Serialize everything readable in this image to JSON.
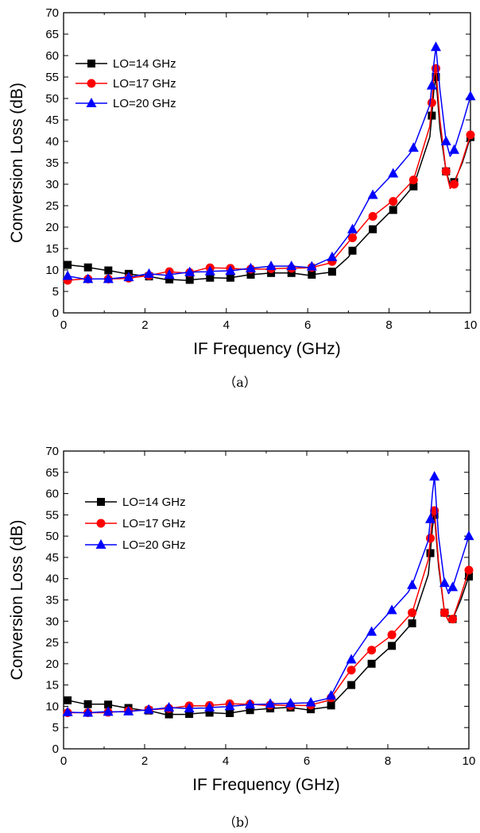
{
  "captions": {
    "a": "（a）",
    "b": "（b）"
  },
  "chart_data": [
    {
      "type": "line",
      "panel": "a",
      "xlabel": "IF Frequency (GHz)",
      "ylabel": "Conversion Loss (dB)",
      "xlim": [
        0,
        10
      ],
      "ylim": [
        0,
        70
      ],
      "xticks": [
        0,
        2,
        4,
        6,
        8,
        10
      ],
      "yticks": [
        0,
        5,
        10,
        15,
        20,
        25,
        30,
        35,
        40,
        45,
        50,
        55,
        60,
        65,
        70
      ],
      "grid": false,
      "legend_position": "top-left",
      "series": [
        {
          "name": "LO=14 GHz",
          "color": "#000000",
          "marker": "square",
          "x": [
            0.1,
            0.5,
            0.6,
            1.0,
            1.1,
            1.5,
            1.6,
            2.0,
            2.1,
            2.5,
            2.6,
            3.0,
            3.1,
            3.5,
            3.6,
            4.0,
            4.1,
            4.5,
            4.6,
            5.0,
            5.1,
            5.5,
            5.6,
            6.0,
            6.1,
            6.5,
            6.6,
            7.0,
            7.1,
            7.5,
            7.6,
            8.0,
            8.1,
            8.5,
            8.6,
            9.0,
            9.05,
            9.1,
            9.15,
            9.25,
            9.4,
            9.5,
            9.6,
            9.8,
            10.0
          ],
          "y": [
            11.2,
            10.8,
            10.6,
            10.0,
            9.9,
            9.2,
            9.1,
            8.6,
            8.5,
            7.8,
            7.8,
            7.6,
            7.7,
            8.0,
            8.2,
            8.1,
            8.2,
            8.8,
            8.9,
            9.2,
            9.3,
            9.3,
            9.3,
            8.8,
            8.9,
            9.4,
            9.6,
            13.0,
            14.5,
            18.6,
            19.5,
            23.3,
            24.0,
            28.5,
            29.5,
            41.0,
            46.0,
            52.0,
            55.0,
            43.0,
            33.0,
            30.0,
            30.5,
            35.0,
            41.0
          ]
        },
        {
          "name": "LO=17 GHz",
          "color": "#ff0000",
          "marker": "circle",
          "x": [
            0.1,
            0.5,
            0.6,
            1.0,
            1.1,
            1.5,
            1.6,
            2.0,
            2.1,
            2.5,
            2.6,
            3.0,
            3.1,
            3.5,
            3.6,
            4.0,
            4.1,
            4.5,
            4.6,
            5.0,
            5.1,
            5.5,
            5.6,
            6.0,
            6.1,
            6.5,
            6.6,
            7.0,
            7.1,
            7.5,
            7.6,
            8.0,
            8.1,
            8.5,
            8.6,
            9.0,
            9.05,
            9.1,
            9.15,
            9.25,
            9.4,
            9.5,
            9.6,
            9.8,
            10.0
          ],
          "y": [
            7.6,
            7.9,
            7.9,
            7.9,
            7.9,
            8.0,
            8.1,
            8.6,
            8.7,
            9.5,
            9.6,
            9.3,
            9.4,
            10.4,
            10.5,
            10.4,
            10.4,
            10.1,
            10.2,
            10.2,
            10.3,
            10.4,
            10.4,
            10.5,
            10.6,
            11.5,
            12.0,
            16.5,
            17.5,
            22.0,
            22.5,
            25.5,
            26.0,
            30.0,
            31.0,
            43.5,
            49.0,
            55.0,
            57.0,
            45.0,
            33.0,
            29.0,
            30.0,
            35.5,
            41.5
          ]
        },
        {
          "name": "LO=20 GHz",
          "color": "#0000ff",
          "marker": "triangle",
          "x": [
            0.1,
            0.5,
            0.6,
            1.0,
            1.1,
            1.5,
            1.6,
            2.0,
            2.1,
            2.5,
            2.6,
            3.0,
            3.1,
            3.5,
            3.6,
            4.0,
            4.1,
            4.5,
            4.6,
            5.0,
            5.1,
            5.5,
            5.6,
            6.0,
            6.1,
            6.5,
            6.6,
            7.0,
            7.1,
            7.5,
            7.6,
            8.0,
            8.1,
            8.5,
            8.6,
            9.0,
            9.05,
            9.1,
            9.15,
            9.25,
            9.4,
            9.5,
            9.6,
            9.8,
            10.0
          ],
          "y": [
            8.6,
            7.9,
            7.9,
            7.9,
            7.9,
            8.3,
            8.3,
            9.0,
            9.1,
            8.8,
            8.9,
            9.4,
            9.5,
            9.6,
            9.7,
            9.8,
            9.8,
            10.3,
            10.4,
            10.8,
            10.9,
            10.9,
            10.9,
            10.6,
            10.8,
            12.5,
            13.0,
            18.0,
            19.5,
            26.5,
            27.5,
            31.5,
            32.5,
            37.0,
            38.5,
            48.5,
            53.0,
            58.0,
            62.0,
            52.0,
            40.0,
            36.5,
            38.0,
            44.0,
            50.5
          ]
        }
      ]
    },
    {
      "type": "line",
      "panel": "b",
      "xlabel": "IF Frequency (GHz)",
      "ylabel": "Conversion Loss (dB)",
      "xlim": [
        0,
        10
      ],
      "ylim": [
        0,
        70
      ],
      "xticks": [
        0,
        2,
        4,
        6,
        8,
        10
      ],
      "yticks": [
        0,
        5,
        10,
        15,
        20,
        25,
        30,
        35,
        40,
        45,
        50,
        55,
        60,
        65,
        70
      ],
      "grid": false,
      "legend_position": "top-left",
      "series": [
        {
          "name": "LO=14 GHz",
          "color": "#000000",
          "marker": "square",
          "x": [
            0.1,
            0.5,
            0.6,
            1.0,
            1.1,
            1.5,
            1.6,
            2.0,
            2.1,
            2.5,
            2.6,
            3.0,
            3.1,
            3.5,
            3.6,
            4.0,
            4.1,
            4.5,
            4.6,
            5.0,
            5.1,
            5.5,
            5.6,
            6.0,
            6.1,
            6.5,
            6.6,
            7.0,
            7.1,
            7.5,
            7.6,
            8.0,
            8.1,
            8.5,
            8.6,
            9.0,
            9.05,
            9.1,
            9.15,
            9.25,
            9.4,
            9.5,
            9.6,
            9.8,
            10.0
          ],
          "y": [
            11.4,
            10.6,
            10.5,
            10.5,
            10.4,
            9.7,
            9.6,
            9.0,
            9.0,
            8.1,
            8.1,
            8.1,
            8.2,
            8.5,
            8.5,
            8.3,
            8.4,
            9.0,
            9.1,
            9.4,
            9.5,
            9.7,
            9.7,
            9.2,
            9.3,
            9.8,
            10.2,
            14.2,
            15.0,
            19.2,
            20.0,
            23.4,
            24.2,
            28.5,
            29.5,
            41.0,
            46.0,
            52.0,
            55.0,
            43.0,
            32.0,
            30.0,
            30.5,
            35.0,
            40.5
          ]
        },
        {
          "name": "LO=17 GHz",
          "color": "#ff0000",
          "marker": "circle",
          "x": [
            0.1,
            0.5,
            0.6,
            1.0,
            1.1,
            1.5,
            1.6,
            2.0,
            2.1,
            2.5,
            2.6,
            3.0,
            3.1,
            3.5,
            3.6,
            4.0,
            4.1,
            4.5,
            4.6,
            5.0,
            5.1,
            5.5,
            5.6,
            6.0,
            6.1,
            6.5,
            6.6,
            7.0,
            7.1,
            7.5,
            7.6,
            8.0,
            8.1,
            8.5,
            8.6,
            9.0,
            9.05,
            9.1,
            9.15,
            9.25,
            9.4,
            9.5,
            9.6,
            9.8,
            10.0
          ],
          "y": [
            8.5,
            8.5,
            8.5,
            8.5,
            8.6,
            8.8,
            8.9,
            9.1,
            9.2,
            9.4,
            9.5,
            10.0,
            10.1,
            10.1,
            10.2,
            10.5,
            10.6,
            10.5,
            10.5,
            10.2,
            10.3,
            10.2,
            10.2,
            10.2,
            10.3,
            11.3,
            12.0,
            17.4,
            18.5,
            22.6,
            23.2,
            26.0,
            26.8,
            31.0,
            32.0,
            44.5,
            49.5,
            54.5,
            56.0,
            44.0,
            32.0,
            30.0,
            30.5,
            36.0,
            42.0
          ]
        },
        {
          "name": "LO=20 GHz",
          "color": "#0000ff",
          "marker": "triangle",
          "x": [
            0.1,
            0.5,
            0.6,
            1.0,
            1.1,
            1.5,
            1.6,
            2.0,
            2.1,
            2.5,
            2.6,
            3.0,
            3.1,
            3.5,
            3.6,
            4.0,
            4.1,
            4.5,
            4.6,
            5.0,
            5.1,
            5.5,
            5.6,
            6.0,
            6.1,
            6.5,
            6.6,
            7.0,
            7.1,
            7.5,
            7.6,
            8.0,
            8.1,
            8.5,
            8.6,
            9.0,
            9.05,
            9.1,
            9.15,
            9.25,
            9.4,
            9.5,
            9.6,
            9.8,
            10.0
          ],
          "y": [
            8.6,
            8.5,
            8.5,
            8.7,
            8.7,
            8.7,
            8.8,
            9.1,
            9.2,
            9.6,
            9.7,
            9.5,
            9.5,
            9.6,
            9.7,
            9.9,
            10.0,
            10.3,
            10.4,
            10.5,
            10.6,
            10.7,
            10.7,
            10.8,
            10.9,
            11.8,
            12.5,
            19.8,
            21.0,
            26.6,
            27.5,
            31.7,
            32.6,
            36.8,
            38.5,
            49.0,
            54.0,
            60.0,
            64.0,
            50.0,
            39.0,
            36.5,
            38.0,
            44.0,
            50.0
          ]
        }
      ]
    }
  ]
}
